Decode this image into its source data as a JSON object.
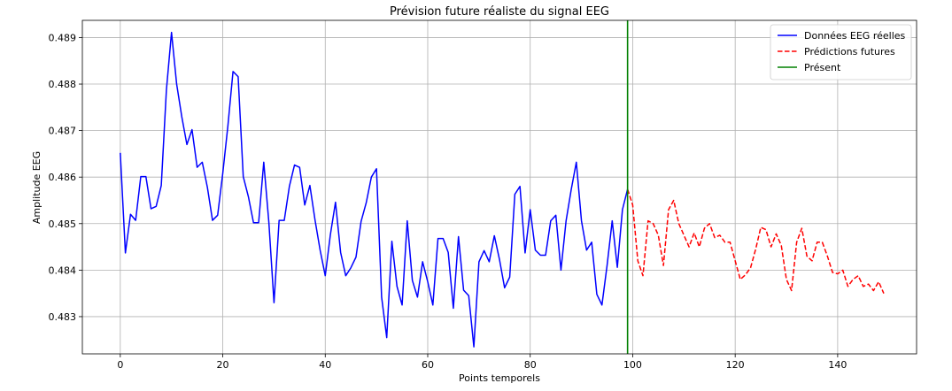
{
  "chart_data": {
    "type": "line",
    "title": "Prévision future réaliste du signal EEG",
    "xlabel": "Points temporels",
    "ylabel": "Amplitude EEG",
    "xlim": [
      -7.4,
      155.4
    ],
    "ylim": [
      0.4822,
      0.48937
    ],
    "xticks": [
      0,
      20,
      40,
      60,
      80,
      100,
      120,
      140
    ],
    "yticks": [
      0.483,
      0.484,
      0.485,
      0.486,
      0.487,
      0.488,
      0.489
    ],
    "grid": true,
    "legend_position": "top-right",
    "series": [
      {
        "name": "Données EEG réelles",
        "color": "#0000ff",
        "style": "solid",
        "x_start": 0,
        "values": [
          0.48652,
          0.48437,
          0.4852,
          0.48507,
          0.48601,
          0.48601,
          0.48532,
          0.48537,
          0.48582,
          0.48787,
          0.48911,
          0.488,
          0.4873,
          0.4867,
          0.48702,
          0.48621,
          0.48632,
          0.48578,
          0.48507,
          0.48518,
          0.48608,
          0.4871,
          0.48827,
          0.48816,
          0.48601,
          0.48558,
          0.48502,
          0.48502,
          0.48632,
          0.48502,
          0.4833,
          0.48507,
          0.48507,
          0.4858,
          0.48626,
          0.48621,
          0.4854,
          0.48582,
          0.48508,
          0.48443,
          0.48388,
          0.48476,
          0.48546,
          0.48438,
          0.48388,
          0.48405,
          0.48428,
          0.48505,
          0.48545,
          0.486,
          0.48618,
          0.48342,
          0.48255,
          0.48462,
          0.48365,
          0.48325,
          0.48506,
          0.48378,
          0.48342,
          0.48418,
          0.48375,
          0.48325,
          0.48468,
          0.48468,
          0.48438,
          0.48318,
          0.48472,
          0.48357,
          0.48345,
          0.48235,
          0.48418,
          0.48442,
          0.48418,
          0.48474,
          0.48423,
          0.48362,
          0.48385,
          0.48563,
          0.4858,
          0.48437,
          0.4853,
          0.48443,
          0.48432,
          0.48432,
          0.48506,
          0.48518,
          0.484,
          0.48506,
          0.48573,
          0.48632,
          0.48506,
          0.48443,
          0.4846,
          0.48348,
          0.48325,
          0.4841,
          0.48506,
          0.48406,
          0.4853,
          0.48574
        ]
      },
      {
        "name": "Prédictions futures",
        "color": "#ff0000",
        "style": "dashed",
        "x_start": 99,
        "values": [
          0.48574,
          0.4854,
          0.4842,
          0.48388,
          0.48506,
          0.485,
          0.48475,
          0.4841,
          0.4853,
          0.4855,
          0.485,
          0.48475,
          0.4845,
          0.4848,
          0.4845,
          0.4849,
          0.485,
          0.4847,
          0.48475,
          0.4846,
          0.4846,
          0.4842,
          0.4838,
          0.4839,
          0.48405,
          0.48445,
          0.48492,
          0.48487,
          0.4845,
          0.48478,
          0.48453,
          0.4838,
          0.48356,
          0.4846,
          0.4849,
          0.4843,
          0.4842,
          0.4846,
          0.4846,
          0.4843,
          0.48395,
          0.48392,
          0.484,
          0.48365,
          0.4838,
          0.48388,
          0.48365,
          0.4837,
          0.48356,
          0.48375,
          0.4835
        ]
      },
      {
        "name": "Présent",
        "color": "#008000",
        "style": "vline",
        "x": 99
      }
    ]
  }
}
